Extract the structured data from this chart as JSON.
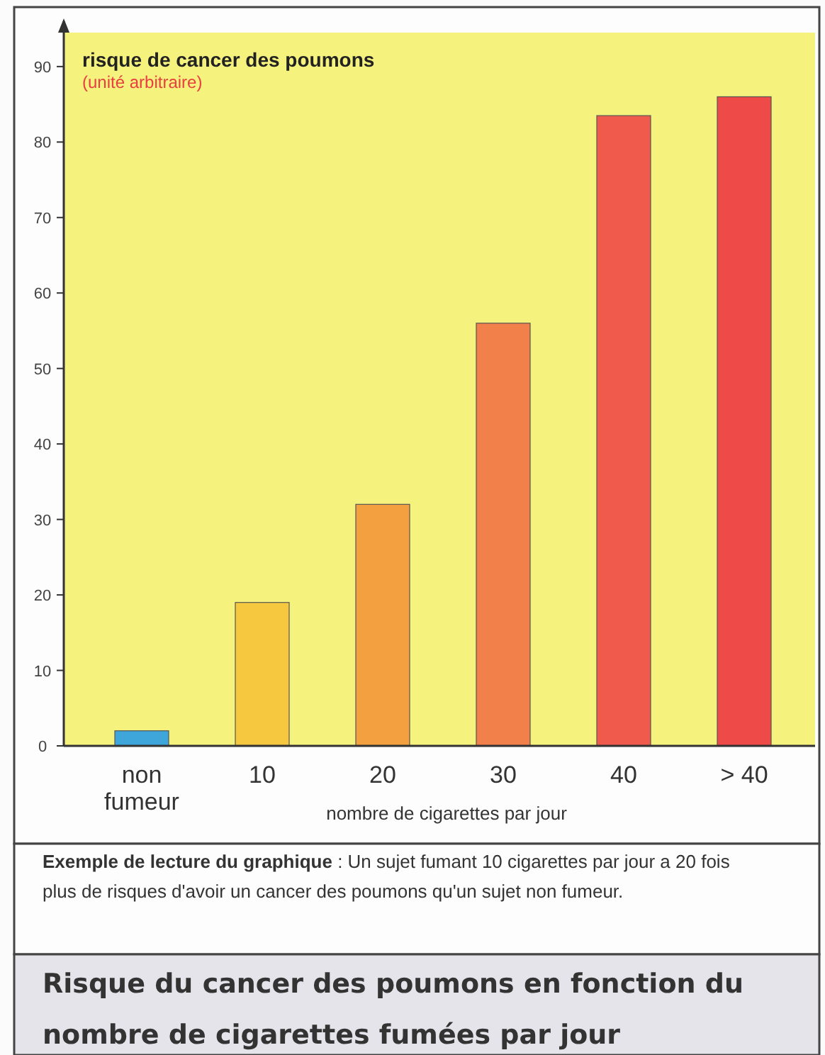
{
  "chart_data": {
    "type": "bar",
    "title": "Risque du cancer des poumons en fonction du nombre de cigarettes fumées par jour",
    "ylabel": "risque de cancer des poumons",
    "xlabel": "nombre de cigarettes par jour",
    "categories": [
      "non fumeur",
      "10",
      "20",
      "30",
      "40",
      "> 40"
    ],
    "values": [
      2,
      19,
      32,
      56,
      83.5,
      86
    ],
    "colors": [
      "#3fa6dc",
      "#f5c840",
      "#f2a040",
      "#f2804a",
      "#f05a4c",
      "#ee4a48"
    ],
    "ylim": [
      0,
      96
    ],
    "yticks": [
      0,
      10,
      20,
      30,
      40,
      50,
      60,
      70,
      80,
      90
    ],
    "annotations": [
      "(unité arbitraire)",
      "Exemple de lecture du graphique : Un sujet fumant 10 cigarettes par jour a  20 fois plus de risques d'avoir un cancer des poumons qu'un sujet non fumeur."
    ]
  }
}
